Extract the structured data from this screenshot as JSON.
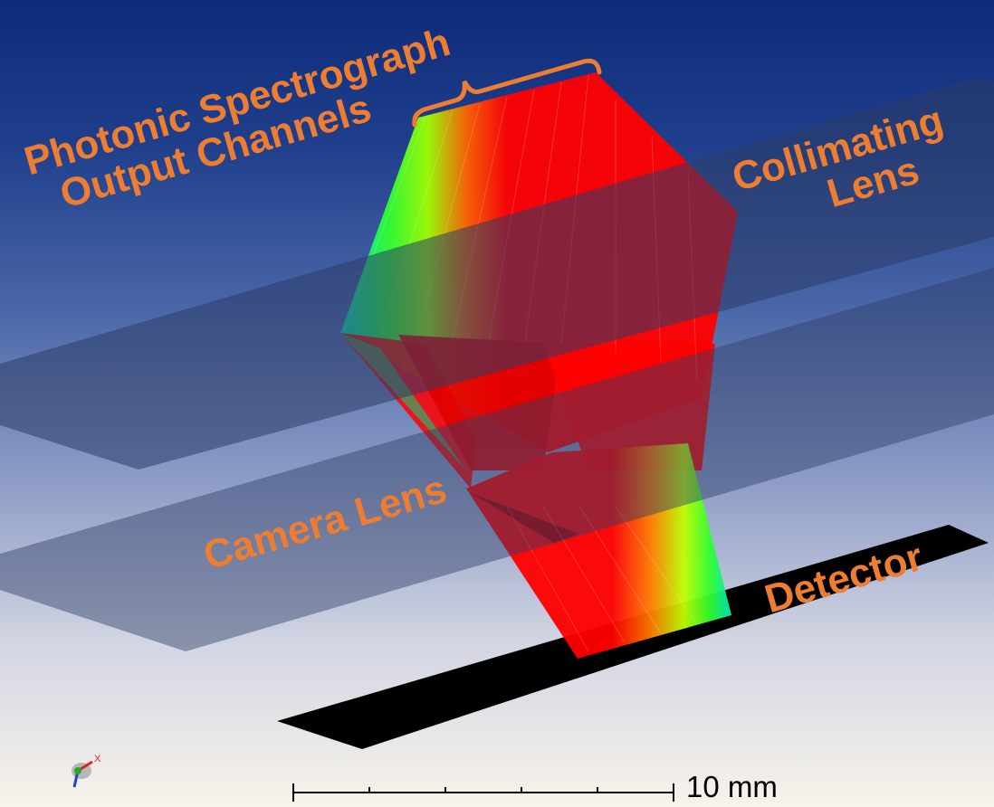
{
  "labels": {
    "spectrograph_line1": "Photonic Spectrograph",
    "spectrograph_line2": "Output Channels",
    "collimating_line1": "Collimating",
    "collimating_line2": "Lens",
    "camera": "Camera Lens",
    "detector": "Detector"
  },
  "scale_bar": {
    "label": "10 mm"
  },
  "axis_triad": {
    "x_label": "X"
  },
  "colors": {
    "annotation": "#ed7d31",
    "ray_red": "#ff0000",
    "ray_green": "#00e000",
    "ray_cyan": "#00e8c0",
    "detector": "#000000"
  }
}
